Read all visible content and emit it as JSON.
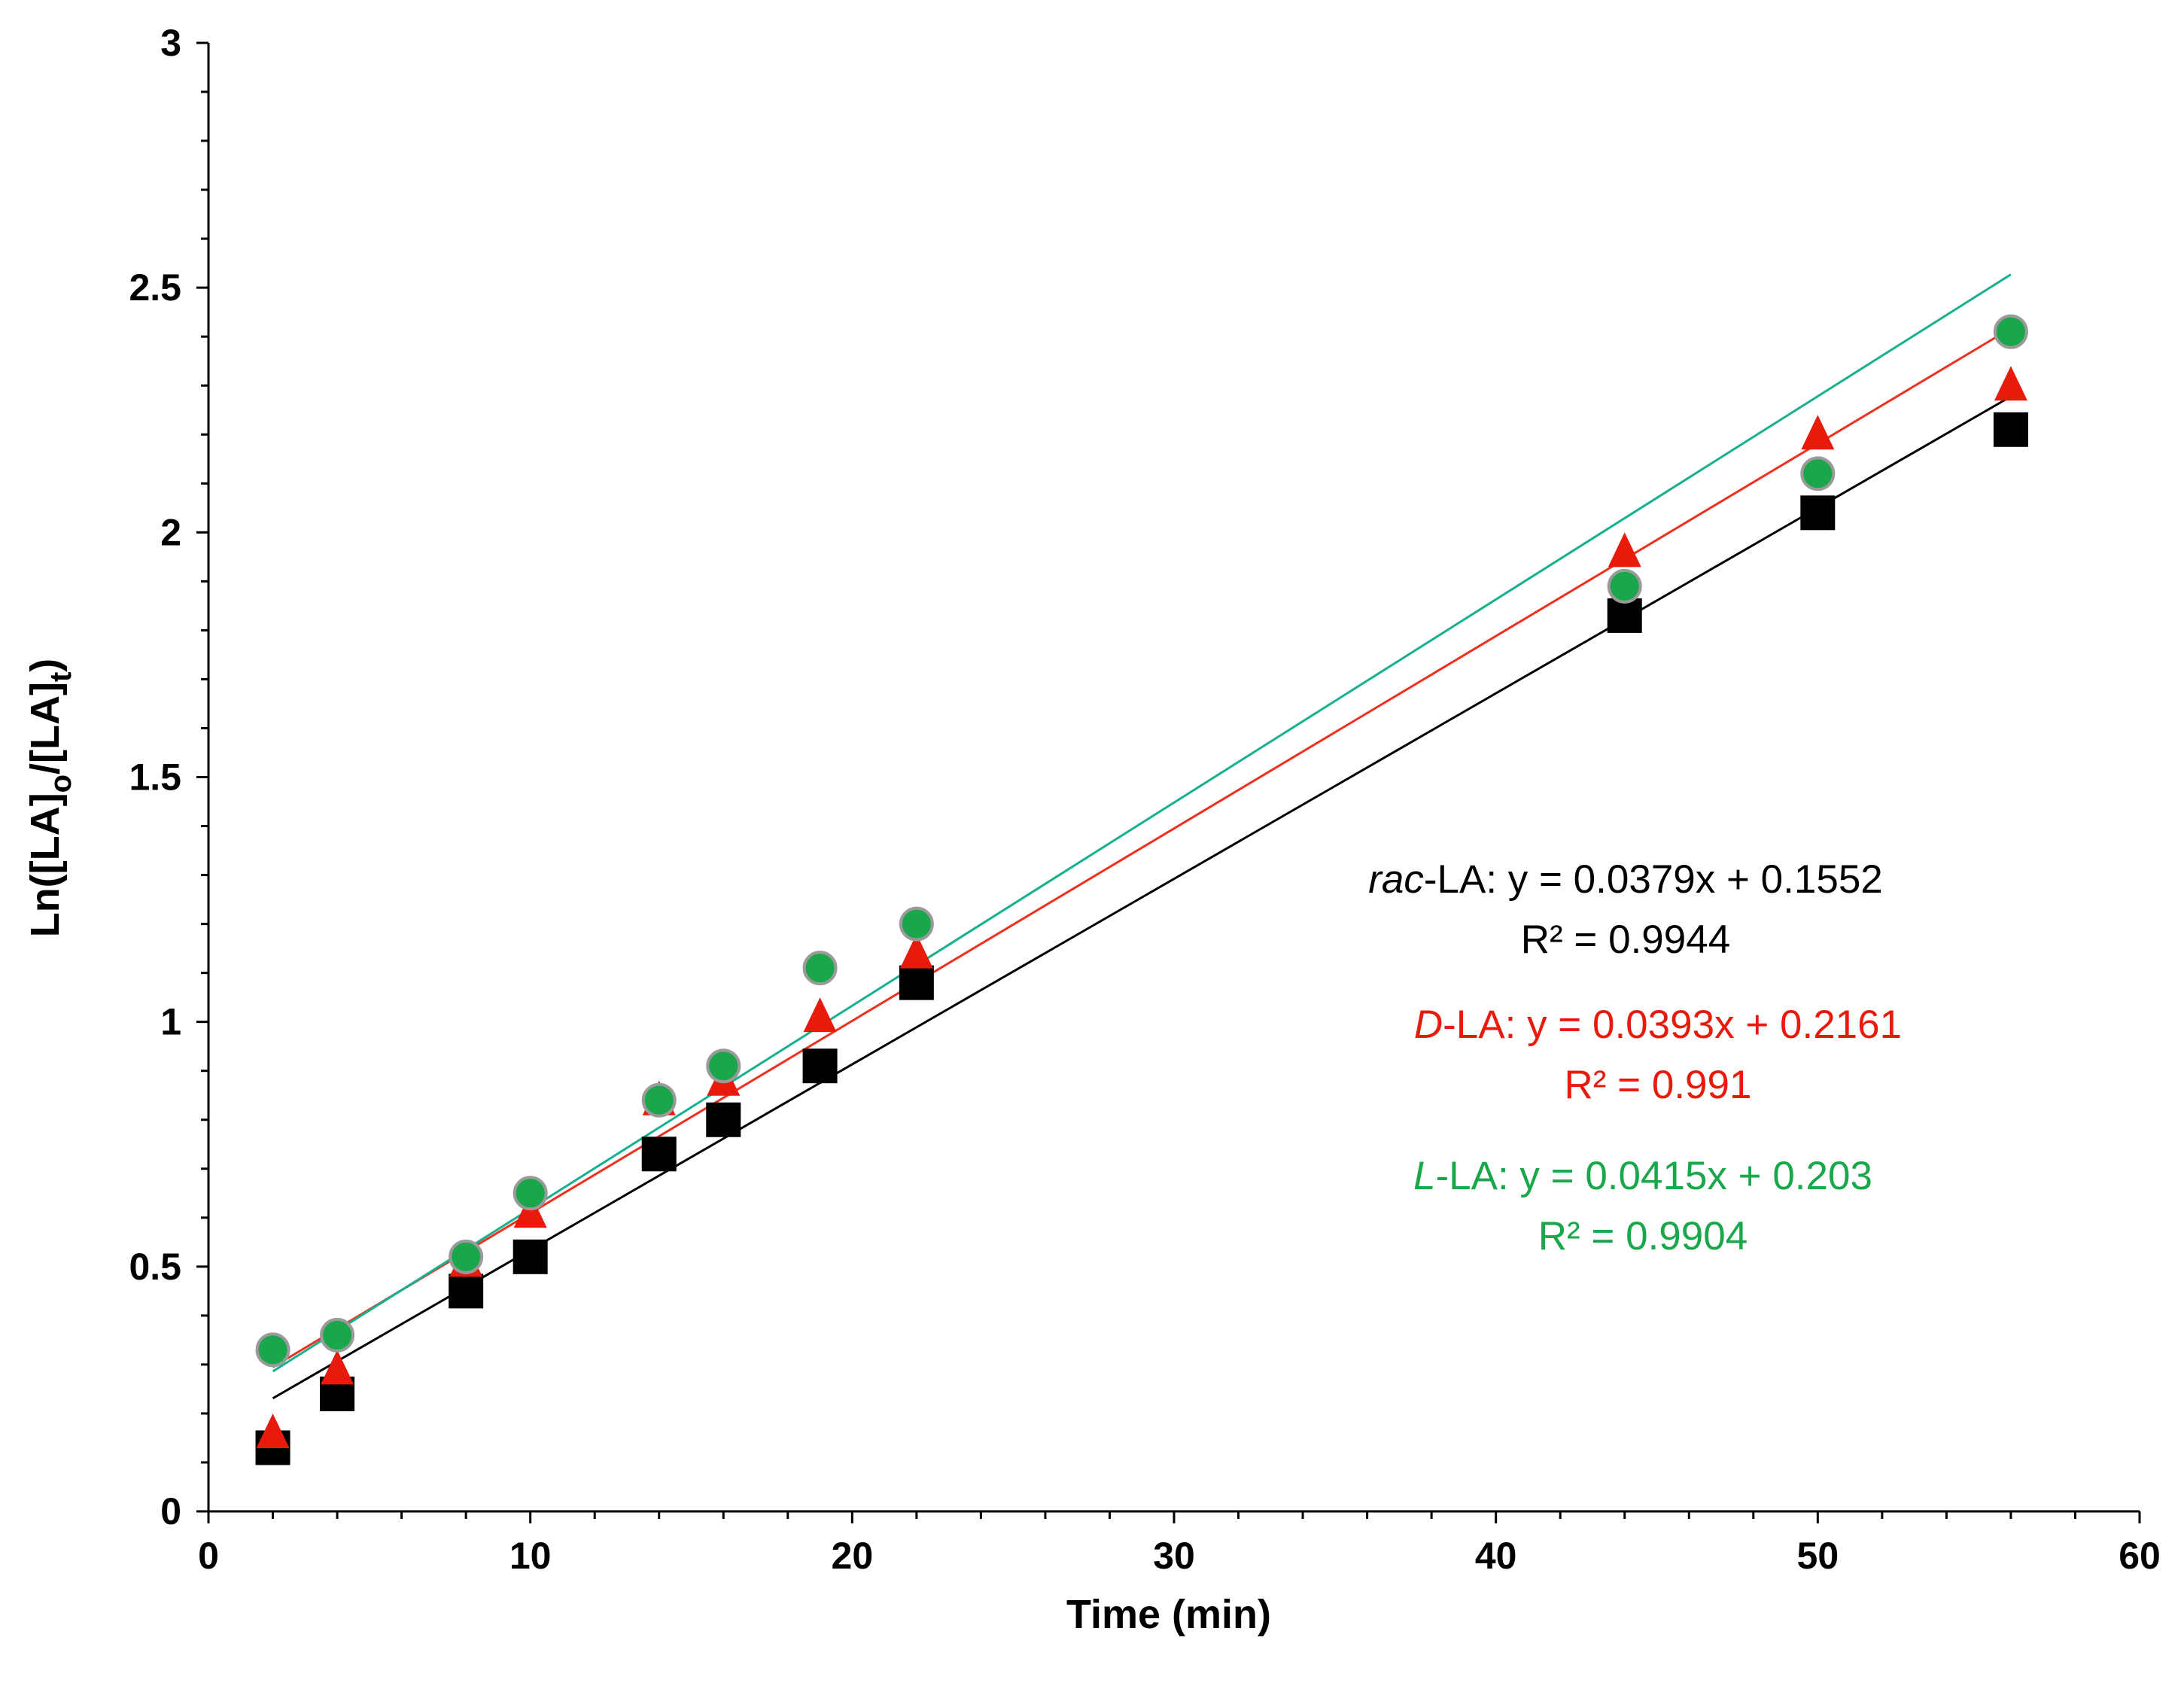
{
  "chart_data": {
    "type": "scatter",
    "title": "",
    "xlabel": "Time (min)",
    "ylabel": {
      "base": "Ln([LA]",
      "sub1": "o",
      "mid": "/[LA]",
      "sub2": "t",
      "end": ")"
    },
    "xlim": [
      0,
      60
    ],
    "ylim": [
      0,
      3
    ],
    "x_ticks": [
      0,
      10,
      20,
      30,
      40,
      50,
      60
    ],
    "y_ticks": [
      0,
      0.5,
      1,
      1.5,
      2,
      2.5,
      3
    ],
    "x_tick_labels": [
      "0",
      "10",
      "20",
      "30",
      "40",
      "50",
      "60"
    ],
    "y_tick_labels": [
      "0",
      "0.5",
      "1",
      "1.5",
      "2",
      "2.5",
      "3"
    ],
    "grid": false,
    "series": [
      {
        "name": "rac-LA",
        "marker": "square",
        "color": "#000000",
        "x": [
          2,
          4,
          8,
          10,
          14,
          16,
          19,
          22,
          44,
          50,
          56
        ],
        "y": [
          0.13,
          0.24,
          0.45,
          0.52,
          0.73,
          0.8,
          0.91,
          1.08,
          1.83,
          2.04,
          2.21
        ],
        "trendline": {
          "slope": 0.0379,
          "intercept": 0.1552,
          "color": "#000000"
        },
        "equation": {
          "italic": "rac",
          "rest": "-LA: y = 0.0379x + 0.1552",
          "r2": "R² = 0.9944"
        }
      },
      {
        "name": "D-LA",
        "marker": "triangle",
        "color": "#e81a0c",
        "x": [
          2,
          4,
          8,
          10,
          14,
          16,
          19,
          22,
          44,
          50,
          56
        ],
        "y": [
          0.16,
          0.29,
          0.51,
          0.61,
          0.84,
          0.88,
          1.01,
          1.14,
          1.96,
          2.2,
          2.3
        ],
        "trendline": {
          "slope": 0.0393,
          "intercept": 0.2161,
          "color": "#f0301f"
        },
        "equation": {
          "italic": "D",
          "rest": "-LA: y = 0.0393x + 0.2161",
          "r2": "R² = 0.991"
        }
      },
      {
        "name": "L-LA",
        "marker": "circle",
        "color": "#1aa64a",
        "x": [
          2,
          4,
          8,
          10,
          14,
          16,
          19,
          22,
          44,
          50,
          56
        ],
        "y": [
          0.33,
          0.36,
          0.52,
          0.65,
          0.84,
          0.91,
          1.11,
          1.2,
          1.89,
          2.12,
          2.41
        ],
        "trendline": {
          "slope": 0.0415,
          "intercept": 0.203,
          "color": "#16b08f"
        },
        "equation": {
          "italic": "L",
          "rest": "-LA: y = 0.0415x + 0.203",
          "r2": "R² = 0.9904"
        }
      }
    ]
  }
}
